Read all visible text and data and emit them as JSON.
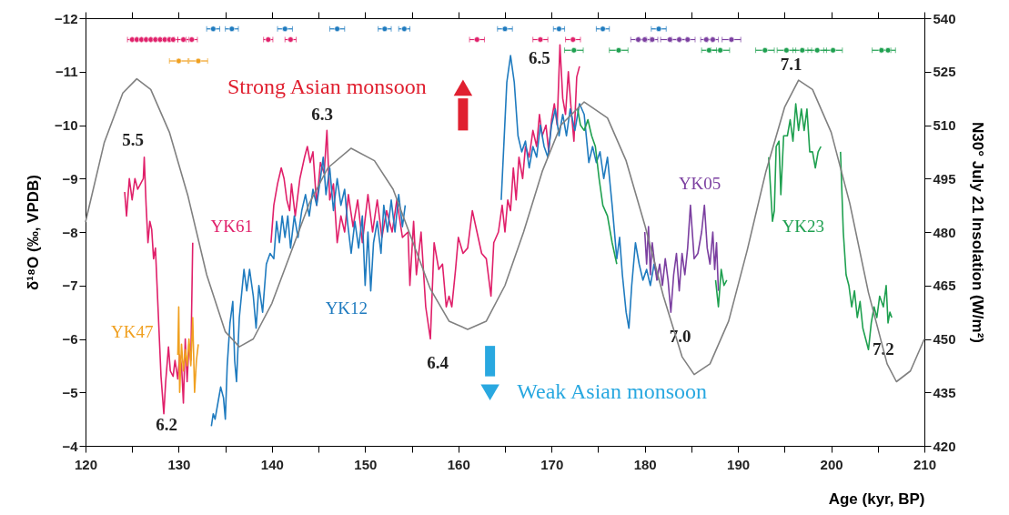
{
  "chart_data": {
    "type": "line",
    "xlabel": "Age (kyr, BP)",
    "ylabel": "δ¹⁸O (‰, VPDB)",
    "y2label": "N30° July 21  Insolation (W/m²)",
    "xlim": [
      120,
      210
    ],
    "xticks": [
      120,
      {
        "value": 125,
        "label": null
      },
      130,
      {
        "value": 135,
        "label": null
      },
      140,
      {
        "value": 145,
        "label": null
      },
      150,
      {
        "value": 155,
        "label": null
      },
      160,
      {
        "value": 165,
        "label": null
      },
      170,
      {
        "value": 175,
        "label": null
      },
      180,
      {
        "value": 185,
        "label": null
      },
      190,
      {
        "value": 195,
        "label": null
      },
      200,
      {
        "value": 205,
        "label": null
      },
      210
    ],
    "ylim": [
      -4,
      -12
    ],
    "yticks": [
      -12,
      -11,
      -10,
      -9,
      -8,
      -7,
      -6,
      -5,
      -4
    ],
    "y2lim": [
      420,
      540
    ],
    "y2ticks": [
      420,
      435,
      450,
      465,
      480,
      495,
      510,
      525,
      540
    ],
    "series": [
      {
        "name": "YK61",
        "color": "#e0206a",
        "x": [
          124.2,
          124.4,
          124.7,
          125.0,
          125.3,
          125.6,
          125.9,
          126.2,
          126.3,
          126.5,
          126.7,
          126.9,
          127.1,
          127.3,
          127.5,
          127.8,
          128.1,
          128.4,
          128.6,
          128.9,
          129.1,
          129.4,
          129.6,
          129.9,
          130.1,
          130.3,
          130.5,
          130.7,
          130.9,
          131.1,
          131.3,
          131.5,
          135.0,
          139.9,
          140.2,
          140.6,
          141.0,
          141.3,
          141.6,
          141.9,
          142.1,
          142.5,
          143.0,
          143.5,
          143.8,
          144.1,
          144.4,
          144.8,
          145.2,
          145.6,
          145.9,
          146.2,
          146.6,
          147.0,
          147.4,
          147.8,
          148.2,
          148.7,
          149.2,
          149.7,
          150.3,
          150.8,
          151.3,
          151.8,
          152.3,
          152.9,
          153.4,
          154.0,
          154.6,
          154.8,
          155.2,
          155.5,
          156.0,
          156.5,
          157.0,
          157.4,
          157.9,
          158.3,
          158.7,
          159.0,
          159.3,
          159.7,
          160.0,
          160.5,
          161.0,
          161.5,
          162.0,
          162.5,
          163.0,
          163.5,
          163.8,
          164.3,
          164.7,
          165.0,
          165.3,
          165.6,
          165.9,
          166.2,
          166.5,
          166.9,
          167.2,
          167.6,
          168.0,
          168.4,
          168.7,
          169.0,
          169.4,
          169.7,
          170.0,
          170.3,
          170.6,
          170.9,
          171.2,
          171.5,
          171.8,
          172.1,
          172.4,
          172.7,
          173.0
        ],
        "values": [
          -8.75,
          -8.3,
          -9.0,
          -8.6,
          -9.0,
          -8.8,
          -8.9,
          -9.0,
          -9.4,
          -8.5,
          -7.8,
          -8.2,
          -8.05,
          -7.5,
          -7.7,
          -6.5,
          -5.3,
          -4.6,
          -5.2,
          -5.85,
          -5.4,
          -5.3,
          -5.6,
          -5.25,
          -5.7,
          -5.5,
          -4.8,
          -6.0,
          -5.2,
          -5.9,
          -5.6,
          -7.8,
          null,
          -7.8,
          -8.5,
          -8.9,
          -9.2,
          -9.0,
          -8.6,
          -8.4,
          -8.9,
          -8.3,
          -9.0,
          -9.4,
          -9.6,
          -9.3,
          -9.5,
          -8.5,
          -9.3,
          -9.1,
          -9.9,
          -8.6,
          -8.9,
          -7.8,
          -8.3,
          -8.0,
          -8.7,
          -8.1,
          -8.6,
          -7.8,
          -8.7,
          -8.0,
          -8.6,
          -7.9,
          -8.4,
          -8.0,
          -8.6,
          -7.9,
          -8.0,
          -7.0,
          -8.2,
          -7.2,
          -8.0,
          -6.6,
          -6.0,
          -7.8,
          -7.3,
          -7.4,
          -6.6,
          -6.8,
          -6.6,
          -7.3,
          -7.9,
          -7.6,
          -7.7,
          -8.4,
          -8.0,
          -7.6,
          -7.5,
          -6.8,
          -7.8,
          -8.0,
          -8.5,
          -8.0,
          -8.6,
          -8.4,
          -9.2,
          -8.6,
          -9.4,
          -9.0,
          -9.6,
          -9.4,
          -9.9,
          -9.6,
          -10.2,
          -9.8,
          -10.0,
          -9.5,
          -10.1,
          -10.4,
          -10.0,
          -11.5,
          -10.5,
          -10.2,
          -11.0,
          -10.3,
          -9.7,
          -10.9,
          -11.1
        ]
      },
      {
        "name": "YK12",
        "color": "#1f7bbf",
        "x": [
          133.5,
          133.7,
          133.9,
          134.2,
          134.5,
          134.8,
          135.0,
          135.2,
          135.5,
          135.8,
          136.0,
          136.2,
          136.5,
          137.0,
          137.3,
          137.6,
          138.0,
          138.3,
          138.6,
          139.0,
          139.4,
          139.8,
          140.2,
          140.5,
          140.8,
          141.1,
          141.4,
          141.7,
          142.0,
          142.4,
          142.8,
          143.2,
          143.6,
          144.0,
          144.4,
          144.8,
          145.2,
          145.5,
          145.8,
          146.2,
          146.6,
          147.0,
          147.4,
          147.8,
          148.1,
          148.5,
          148.9,
          149.3,
          149.7,
          150.0,
          150.3,
          150.6,
          150.9,
          151.3,
          151.7,
          152.0,
          152.4,
          152.8,
          153.2,
          153.6,
          154.0,
          154.3,
          160.0,
          164.6,
          164.9,
          165.2,
          165.6,
          166.0,
          166.4,
          166.8,
          167.2,
          167.6,
          168.0,
          168.4,
          168.8,
          169.2,
          169.6,
          170.0,
          170.4,
          170.8,
          171.2,
          171.6,
          172.0,
          172.5,
          173.0,
          173.5,
          174.0,
          174.4,
          174.8,
          175.2,
          175.6,
          176.0,
          176.5,
          177.0,
          177.3,
          177.6,
          178.0,
          178.3,
          178.6,
          179.0,
          179.4,
          179.8,
          180.2,
          180.6,
          181.0,
          181.4
        ],
        "values": [
          -4.37,
          -4.6,
          -4.5,
          -4.8,
          -5.1,
          -4.9,
          -4.5,
          -5.5,
          -6.3,
          -6.7,
          -5.6,
          -5.2,
          -6.4,
          -7.3,
          -6.9,
          -7.3,
          -6.8,
          -6.2,
          -7.0,
          -6.5,
          -7.4,
          -7.6,
          -7.5,
          -8.2,
          -7.8,
          -8.3,
          -7.9,
          -8.3,
          -7.7,
          -8.3,
          -7.9,
          -8.4,
          -8.7,
          -8.3,
          -8.8,
          -8.5,
          -9.0,
          -9.4,
          -8.7,
          -9.2,
          -8.4,
          -9.0,
          -8.5,
          -8.8,
          -8.2,
          -7.6,
          -8.2,
          -7.7,
          -8.3,
          -7.0,
          -8.0,
          -6.9,
          -7.8,
          -8.2,
          -7.6,
          -8.5,
          -8.0,
          -8.6,
          -8.0,
          -8.7,
          -8.1,
          -8.5,
          null,
          -8.6,
          -9.7,
          -10.8,
          -11.3,
          -10.8,
          -9.8,
          -9.5,
          -9.7,
          -9.2,
          -9.6,
          -9.4,
          -10.0,
          -9.6,
          -9.4,
          -10.0,
          -10.3,
          -9.8,
          -10.2,
          -9.8,
          -10.3,
          -9.9,
          -10.4,
          -10.2,
          -9.3,
          -9.6,
          -9.3,
          -9.5,
          -9.0,
          -9.4,
          -8.5,
          -7.5,
          -7.9,
          -7.2,
          -6.5,
          -6.2,
          -7.0,
          -7.8,
          -7.4,
          -7.1,
          -7.3,
          -7.0,
          -7.4,
          -7.1
        ]
      },
      {
        "name": "YK47",
        "color": "#f0a020",
        "x": [
          129.9,
          130.0,
          130.1,
          130.3,
          130.5,
          130.7,
          130.9,
          131.1,
          131.3,
          131.5,
          131.7,
          131.9,
          132.1
        ],
        "values": [
          -5.7,
          -6.6,
          -5.0,
          -5.9,
          -5.4,
          -5.8,
          -5.5,
          -6.0,
          -5.5,
          -6.4,
          -5.0,
          -5.6,
          -5.9
        ]
      },
      {
        "name": "YK05",
        "color": "#7b3fa0",
        "x": [
          180.0,
          180.2,
          180.4,
          180.6,
          180.8,
          181.0,
          181.3,
          181.6,
          181.9,
          182.2,
          182.5,
          182.8,
          183.1,
          183.4,
          183.7,
          184.0,
          184.3,
          184.6,
          184.9,
          185.3,
          185.7,
          186.1,
          186.4,
          186.7,
          187.0,
          187.3,
          187.5,
          187.7,
          187.9
        ],
        "values": [
          -8.0,
          -7.4,
          -8.1,
          -7.2,
          -7.8,
          -7.5,
          -7.1,
          -7.4,
          -7.0,
          -7.5,
          -7.1,
          -6.5,
          -7.2,
          -7.6,
          -6.9,
          -7.6,
          -7.2,
          -7.7,
          -8.5,
          -7.5,
          -7.6,
          -8.0,
          -8.5,
          -7.7,
          -7.4,
          -8.0,
          -7.3,
          -7.8,
          -6.9
        ]
      },
      {
        "name": "YK23",
        "color": "#1fa050",
        "x": [
          172.8,
          173.1,
          173.5,
          173.9,
          174.3,
          174.7,
          175.1,
          175.5,
          176.0,
          176.5,
          177.0,
          182.0,
          187.6,
          187.9,
          188.2,
          188.5,
          188.8,
          191.0,
          193.3,
          193.5,
          193.7,
          193.9,
          194.1,
          194.4,
          194.6,
          194.9,
          195.3,
          195.6,
          195.9,
          196.2,
          196.5,
          196.8,
          197.1,
          197.4,
          197.7,
          198.0,
          198.3,
          198.6,
          198.9,
          200.0,
          201.0,
          201.3,
          201.6,
          201.9,
          202.2,
          202.5,
          202.8,
          203.1,
          203.4,
          203.7,
          204.0,
          204.3,
          204.6,
          204.9,
          205.2,
          205.6,
          205.9,
          206.1,
          206.3,
          206.5
        ],
        "values": [
          -10.3,
          -10.0,
          -9.9,
          -10.1,
          -9.8,
          -9.6,
          -9.0,
          -8.5,
          -8.3,
          -7.8,
          -7.4,
          null,
          -7.1,
          -6.6,
          -7.3,
          -7.0,
          -7.1,
          null,
          -9.4,
          -8.8,
          -8.2,
          -8.4,
          -9.6,
          -9.7,
          -8.7,
          -9.8,
          -9.8,
          -10.1,
          -9.7,
          -10.4,
          -9.9,
          -10.3,
          -9.9,
          -10.3,
          -9.5,
          -9.5,
          -9.2,
          -9.5,
          -9.6,
          null,
          -9.5,
          -8.0,
          -7.2,
          -7.0,
          -6.6,
          -6.9,
          -6.4,
          -6.7,
          -6.2,
          -6.0,
          -5.8,
          -6.3,
          -6.6,
          -6.4,
          -6.8,
          -6.6,
          -7.0,
          -6.3,
          -6.5,
          -6.4
        ]
      },
      {
        "color": "#808080",
        "axis": "y2",
        "x": [
          120,
          122,
          124,
          125.5,
          127,
          129,
          131,
          133,
          135,
          136.5,
          138,
          140,
          142,
          144,
          146,
          148.5,
          151,
          153,
          155,
          157,
          159,
          161,
          163,
          165,
          167,
          169,
          171,
          173.5,
          176,
          178,
          180,
          182,
          184,
          185.3,
          187,
          189,
          191,
          193,
          195,
          196.5,
          198,
          200,
          202,
          204,
          206,
          207,
          208.5,
          210
        ],
        "values": [
          482.8,
          505,
          519,
          523,
          520,
          508,
          490,
          468,
          452,
          447.8,
          450,
          460,
          474,
          488,
          498,
          503.5,
          500,
          492,
          478,
          464,
          455,
          452.7,
          455,
          465,
          480,
          497,
          510,
          516.5,
          512,
          500,
          482,
          462,
          445,
          440,
          443,
          455,
          475,
          497,
          515,
          522.6,
          520,
          508,
          488,
          463,
          443,
          438,
          441,
          450
        ]
      },
      {
        "type": "scatter",
        "color": "#1f7bbf",
        "x": [
          133.7,
          135.7,
          141.4,
          147.0,
          152.1,
          154.2,
          165.0,
          170.8,
          175.5,
          181.5
        ],
        "values": [
          -11.8,
          -11.8,
          -11.8,
          -11.8,
          -11.8,
          -11.8,
          -11.8,
          -11.8,
          -11.8,
          -11.8
        ],
        "xerrors": [
          0.7,
          0.7,
          0.8,
          0.8,
          0.7,
          0.6,
          0.8,
          0.6,
          0.7,
          0.8
        ]
      },
      {
        "type": "scatter",
        "color": "#e0206a",
        "x": [
          125.0,
          125.5,
          126.0,
          126.5,
          127.0,
          127.5,
          128.0,
          128.5,
          129.0,
          129.4,
          130.5,
          131.4,
          139.6,
          142.0,
          162.0,
          168.8,
          172.3
        ],
        "values": [
          -11.6,
          -11.6,
          -11.6,
          -11.6,
          -11.6,
          -11.6,
          -11.6,
          -11.6,
          -11.6,
          -11.6,
          -11.6,
          -11.6,
          -11.6,
          -11.6,
          -11.6,
          -11.6,
          -11.6
        ],
        "xerrors": [
          0.5,
          0.5,
          0.5,
          0.5,
          0.5,
          0.5,
          0.5,
          0.5,
          0.5,
          0.5,
          0.6,
          0.6,
          0.5,
          0.6,
          0.8,
          0.8,
          0.8
        ]
      },
      {
        "type": "scatter",
        "color": "#7b3fa0",
        "x": [
          179.3,
          180.0,
          180.8,
          182.7,
          183.7,
          184.6,
          186.6,
          187.3,
          189.3
        ],
        "values": [
          -11.6,
          -11.6,
          -11.6,
          -11.6,
          -11.6,
          -11.6,
          -11.6,
          -11.6,
          -11.6
        ],
        "xerrors": [
          0.8,
          0.6,
          0.6,
          1.0,
          0.8,
          0.8,
          0.6,
          0.6,
          1.0
        ]
      },
      {
        "type": "scatter",
        "color": "#1fa050",
        "x": [
          172.4,
          177.2,
          186.9,
          188.1,
          192.9,
          195.2,
          196.9,
          198.5,
          200.2,
          205.4,
          206.1
        ],
        "values": [
          -11.4,
          -11.4,
          -11.4,
          -11.4,
          -11.4,
          -11.4,
          -11.4,
          -11.4,
          -11.4,
          -11.4,
          -11.4
        ],
        "xerrors": [
          1.0,
          1.0,
          0.8,
          1.0,
          1.0,
          1.0,
          1.0,
          1.0,
          1.0,
          1.0,
          0.8
        ]
      },
      {
        "type": "scatter",
        "color": "#f0a020",
        "x": [
          130.0,
          132.1
        ],
        "values": [
          -11.2,
          -11.2
        ],
        "xerrors": [
          1.0,
          1.0
        ]
      }
    ],
    "marker": "none",
    "line_style": "solid",
    "grid": false,
    "annotations": [
      "5.5",
      "6.3",
      "6.5",
      "7.1",
      "6.2",
      "6.4",
      "7.0",
      "7.2",
      "Strong Asian monsoon",
      "Weak Asian monsoon"
    ]
  }
}
